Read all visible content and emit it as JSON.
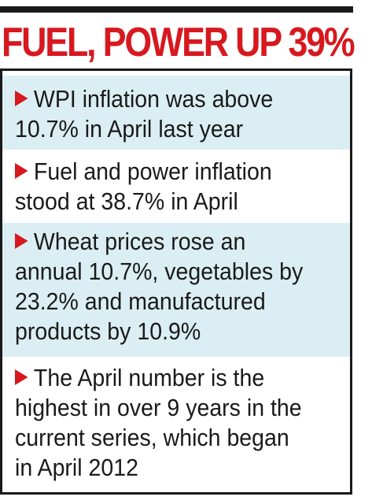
{
  "headline": "FUEL, POWER UP 39%",
  "colors": {
    "headline": "#d7191f",
    "arrow": "#d7191f",
    "shaded_row": "#dbeef3",
    "text": "#1a1a1a",
    "border": "#1a1a1a"
  },
  "bullets": [
    {
      "icon": "red-arrow-icon",
      "text": "WPI inflation was above\n10.7% in April last year"
    },
    {
      "icon": "red-arrow-icon",
      "text": "Fuel and power inflation\nstood at 38.7% in April"
    },
    {
      "icon": "red-arrow-icon",
      "text": "Wheat prices rose an\nannual 10.7%, vegetables by\n23.2% and manufactured\nproducts by 10.9%"
    },
    {
      "icon": "red-arrow-icon",
      "text": "The April number is the\nhighest in over 9 years in the\ncurrent series, which began\nin April 2012"
    }
  ]
}
